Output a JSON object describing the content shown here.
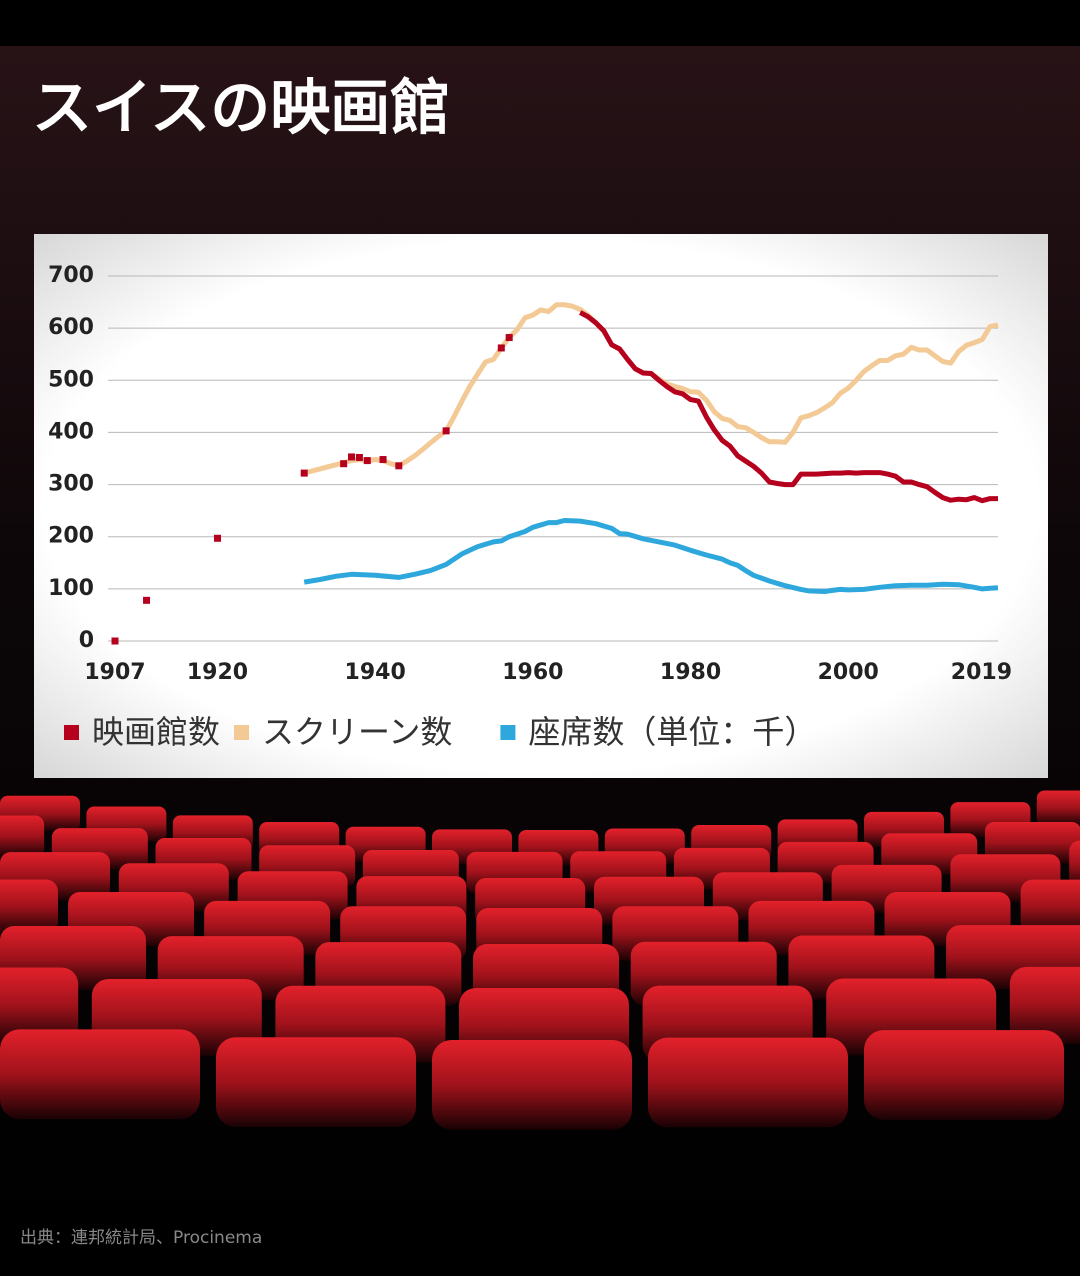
{
  "chart_data": {
    "type": "line",
    "title": "スイスの映画館",
    "source": "出典：連邦統計局、Procinema",
    "xlim": [
      1907,
      2019
    ],
    "xticks": [
      1907,
      1920,
      1940,
      1960,
      1980,
      2000,
      2019
    ],
    "ylim": [
      0,
      700
    ],
    "yticks": [
      0,
      100,
      200,
      300,
      400,
      500,
      600,
      700
    ],
    "grid": true,
    "legend": "bottom",
    "series": [
      {
        "name": "映画館数",
        "color": "#b5001e",
        "marker_x": [
          1907,
          1911,
          1920,
          1931,
          1936,
          1937,
          1938,
          1939,
          1941,
          1943,
          1949,
          1956,
          1957
        ],
        "marker_values": [
          0,
          78,
          197,
          322,
          340,
          353,
          352,
          346,
          348,
          336,
          403,
          562,
          582
        ],
        "x": [
          1966,
          1967,
          1968,
          1969,
          1970,
          1971,
          1972,
          1973,
          1974,
          1975,
          1976,
          1977,
          1978,
          1979,
          1980,
          1981,
          1982,
          1983,
          1984,
          1985,
          1986,
          1987,
          1988,
          1989,
          1990,
          1991,
          1992,
          1993,
          1994,
          1995,
          1996,
          1997,
          1998,
          1999,
          2000,
          2001,
          2002,
          2003,
          2004,
          2005,
          2006,
          2007,
          2008,
          2009,
          2010,
          2011,
          2012,
          2013,
          2014,
          2015,
          2016,
          2017,
          2018,
          2019
        ],
        "values": [
          630,
          622,
          610,
          595,
          568,
          560,
          540,
          522,
          514,
          513,
          500,
          488,
          478,
          474,
          463,
          460,
          430,
          405,
          385,
          374,
          355,
          345,
          335,
          322,
          305,
          302,
          300,
          300,
          320,
          320,
          320,
          321,
          322,
          322,
          323,
          322,
          323,
          323,
          323,
          320,
          316,
          305,
          305,
          300,
          296,
          285,
          275,
          270,
          272,
          271,
          275,
          269,
          273,
          273
        ]
      },
      {
        "name": "スクリーン数",
        "color": "#f3c995",
        "x": [
          1931,
          1932,
          1933,
          1934,
          1935,
          1936,
          1937,
          1938,
          1939,
          1940,
          1941,
          1942,
          1943,
          1944,
          1945,
          1946,
          1947,
          1948,
          1949,
          1950,
          1951,
          1952,
          1953,
          1954,
          1955,
          1956,
          1957,
          1958,
          1959,
          1960,
          1961,
          1962,
          1963,
          1964,
          1965,
          1966,
          1967,
          1968,
          1969,
          1970,
          1971,
          1972,
          1973,
          1974,
          1975,
          1976,
          1977,
          1978,
          1979,
          1980,
          1981,
          1982,
          1983,
          1984,
          1985,
          1986,
          1987,
          1988,
          1989,
          1990,
          1991,
          1992,
          1993,
          1994,
          1995,
          1996,
          1997,
          1998,
          1999,
          2000,
          2001,
          2002,
          2003,
          2004,
          2005,
          2006,
          2007,
          2008,
          2009,
          2010,
          2011,
          2012,
          2013,
          2014,
          2015,
          2016,
          2017,
          2018,
          2019
        ],
        "values": [
          322,
          326,
          330,
          334,
          338,
          342,
          346,
          348,
          345,
          348,
          346,
          340,
          336,
          345,
          355,
          367,
          380,
          392,
          403,
          430,
          460,
          488,
          512,
          535,
          540,
          562,
          582,
          597,
          620,
          625,
          635,
          632,
          645,
          645,
          642,
          636,
          625,
          610,
          595,
          568,
          560,
          540,
          522,
          514,
          513,
          502,
          493,
          488,
          484,
          478,
          477,
          462,
          440,
          427,
          423,
          411,
          409,
          400,
          390,
          382,
          382,
          381,
          400,
          428,
          432,
          438,
          447,
          457,
          475,
          485,
          500,
          517,
          528,
          538,
          538,
          547,
          550,
          563,
          558,
          558,
          547,
          536,
          533,
          555,
          567,
          572,
          578,
          603,
          606
        ]
      },
      {
        "name": "座席数（単位：千）",
        "color": "#2ea8dc",
        "x": [
          1931,
          1933,
          1935,
          1937,
          1940,
          1943,
          1945,
          1947,
          1949,
          1951,
          1953,
          1955,
          1956,
          1957,
          1959,
          1960,
          1962,
          1963,
          1964,
          1966,
          1968,
          1970,
          1971,
          1972,
          1974,
          1976,
          1978,
          1980,
          1982,
          1984,
          1985,
          1986,
          1987,
          1988,
          1990,
          1992,
          1994,
          1995,
          1997,
          1998,
          1999,
          2000,
          2002,
          2004,
          2006,
          2008,
          2010,
          2012,
          2014,
          2016,
          2017,
          2018,
          2019
        ],
        "values": [
          113,
          118,
          124,
          128,
          126,
          122,
          128,
          135,
          147,
          167,
          181,
          190,
          192,
          200,
          210,
          218,
          227,
          227,
          231,
          230,
          225,
          216,
          206,
          205,
          196,
          190,
          184,
          174,
          165,
          157,
          150,
          145,
          135,
          126,
          115,
          106,
          99,
          96,
          95,
          97,
          99,
          98,
          99,
          103,
          106,
          107,
          107,
          109,
          108,
          103,
          100,
          101,
          102
        ]
      }
    ]
  }
}
